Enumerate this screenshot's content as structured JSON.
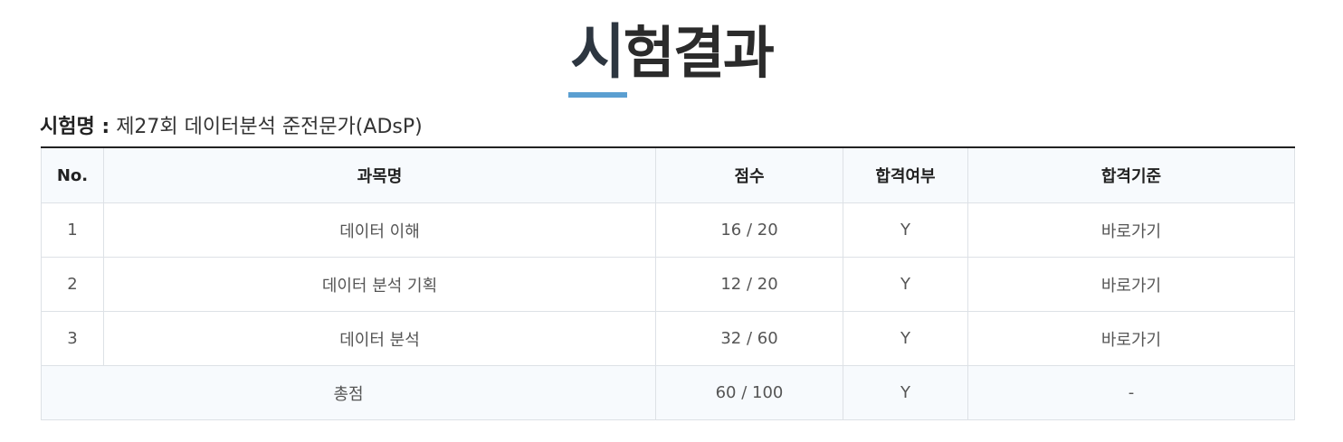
{
  "page": {
    "title_first_char": "시",
    "title_rest": "험결과",
    "exam_label": "시험명 :",
    "exam_name": "제27회 데이터분석 준전문가(ADsP)"
  },
  "table": {
    "headers": {
      "no": "No.",
      "subject": "과목명",
      "score": "점수",
      "pass": "합격여부",
      "criteria": "합격기준"
    },
    "rows": [
      {
        "no": "1",
        "subject": "데이터 이해",
        "score": "16 / 20",
        "pass": "Y",
        "criteria": "바로가기"
      },
      {
        "no": "2",
        "subject": "데이터 분석 기획",
        "score": "12 / 20",
        "pass": "Y",
        "criteria": "바로가기"
      },
      {
        "no": "3",
        "subject": "데이터 분석",
        "score": "32 / 60",
        "pass": "Y",
        "criteria": "바로가기"
      }
    ],
    "total": {
      "label": "총점",
      "score": "60 / 100",
      "pass": "Y",
      "criteria": "-"
    }
  },
  "colors": {
    "title_underline": "#5b9fd1",
    "header_bg": "#f7fafd",
    "border": "#dde1e6"
  }
}
